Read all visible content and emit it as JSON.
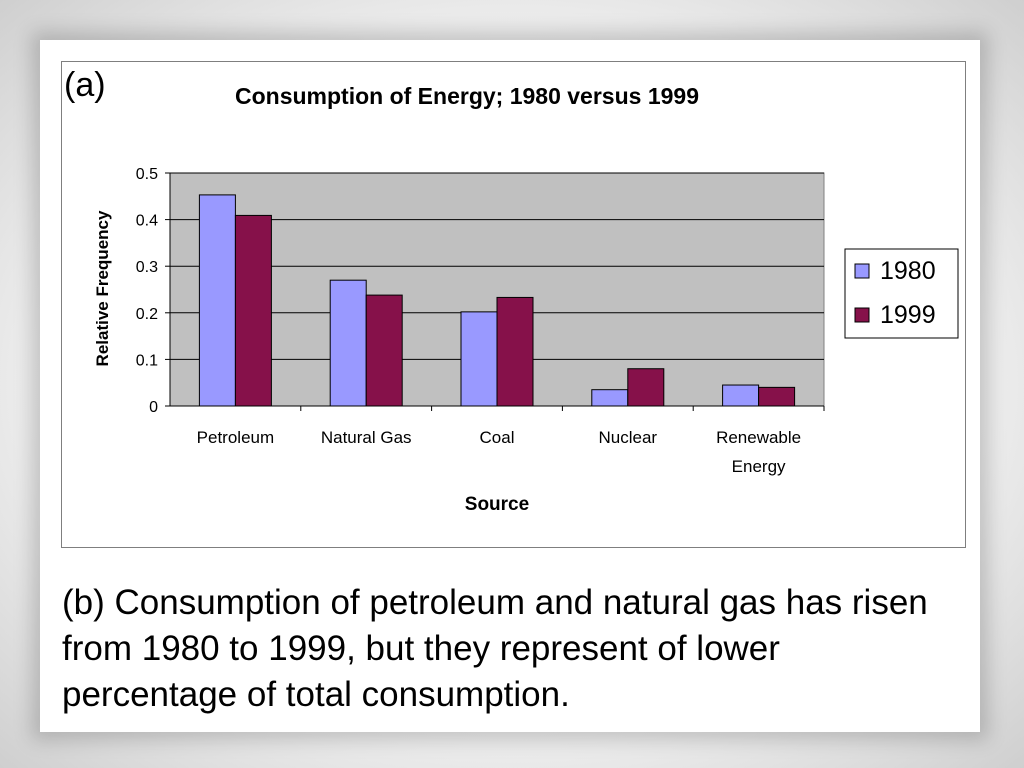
{
  "panel_a_label": "(a)",
  "caption": "(b) Consumption of petroleum and natural gas has risen from 1980 to 1999, but they represent of lower percentage of total consumption.",
  "colors": {
    "series_1980": "#9999ff",
    "series_1999": "#86114a",
    "plot_bg": "#c0c0c0"
  },
  "chart_data": {
    "type": "bar",
    "title": "Consumption of Energy; 1980 versus 1999",
    "xlabel": "Source",
    "ylabel": "Relative Frequency",
    "ylim": [
      0,
      0.5
    ],
    "yticks": [
      "0",
      "0.1",
      "0.2",
      "0.3",
      "0.4",
      "0.5"
    ],
    "grid": true,
    "legend_position": "right",
    "categories": [
      [
        "Petroleum"
      ],
      [
        "Natural Gas"
      ],
      [
        "Coal"
      ],
      [
        "Nuclear"
      ],
      [
        "Renewable",
        "Energy"
      ]
    ],
    "series": [
      {
        "name": "1980",
        "values": [
          0.453,
          0.27,
          0.202,
          0.035,
          0.045
        ]
      },
      {
        "name": "1999",
        "values": [
          0.409,
          0.238,
          0.233,
          0.08,
          0.04
        ]
      }
    ]
  }
}
